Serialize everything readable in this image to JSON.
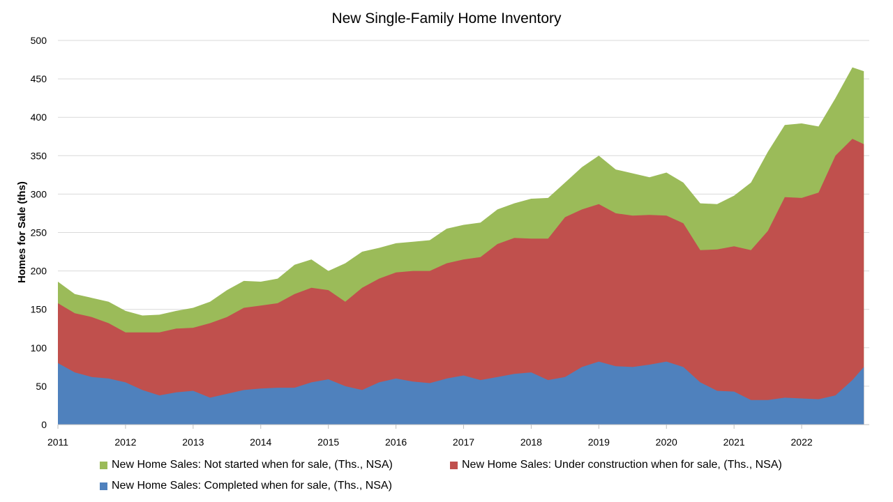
{
  "chart_data": {
    "type": "area",
    "stacked": true,
    "title": "New Single-Family Home Inventory",
    "xlabel": "",
    "ylabel": "Homes for Sale (ths)",
    "xlim": [
      2011,
      2023
    ],
    "ylim": [
      0,
      500
    ],
    "x_ticks": [
      "2011",
      "2012",
      "2013",
      "2014",
      "2015",
      "2016",
      "2017",
      "2018",
      "2019",
      "2020",
      "2021",
      "2022"
    ],
    "y_ticks": [
      "0",
      "50",
      "100",
      "150",
      "200",
      "250",
      "300",
      "350",
      "400",
      "450",
      "500"
    ],
    "grid": "horizontal",
    "legend_position": "bottom",
    "x": [
      2011.0,
      2011.25,
      2011.5,
      2011.75,
      2012.0,
      2012.25,
      2012.5,
      2012.75,
      2013.0,
      2013.25,
      2013.5,
      2013.75,
      2014.0,
      2014.25,
      2014.5,
      2014.75,
      2015.0,
      2015.25,
      2015.5,
      2015.75,
      2016.0,
      2016.25,
      2016.5,
      2016.75,
      2017.0,
      2017.25,
      2017.5,
      2017.75,
      2018.0,
      2018.25,
      2018.5,
      2018.75,
      2019.0,
      2019.25,
      2019.5,
      2019.75,
      2020.0,
      2020.25,
      2020.5,
      2020.75,
      2021.0,
      2021.25,
      2021.5,
      2021.75,
      2022.0,
      2022.25,
      2022.5,
      2022.75,
      2022.92
    ],
    "series": [
      {
        "name": "New Home Sales: Completed when for sale, (Ths., NSA)",
        "color": "#4F81BD",
        "values": [
          80,
          68,
          62,
          60,
          55,
          45,
          38,
          42,
          44,
          35,
          40,
          45,
          47,
          48,
          48,
          55,
          59,
          50,
          45,
          55,
          60,
          56,
          54,
          60,
          64,
          58,
          62,
          66,
          68,
          58,
          62,
          75,
          82,
          76,
          75,
          78,
          82,
          75,
          55,
          44,
          43,
          32,
          32,
          35,
          34,
          33,
          38,
          58,
          75
        ]
      },
      {
        "name": "New Home Sales: Under construction when for sale, (Ths., NSA)",
        "color": "#C0504D",
        "values": [
          158,
          145,
          140,
          132,
          120,
          120,
          120,
          125,
          126,
          132,
          140,
          152,
          155,
          158,
          170,
          178,
          175,
          160,
          178,
          190,
          198,
          200,
          200,
          210,
          215,
          218,
          235,
          243,
          242,
          242,
          270,
          280,
          287,
          275,
          272,
          273,
          272,
          262,
          227,
          228,
          232,
          227,
          252,
          296,
          295,
          302,
          350,
          372,
          365
        ]
      },
      {
        "name": "New Home Sales: Not started when for sale, (Ths., NSA)",
        "color": "#9BBB59",
        "values": [
          186,
          170,
          165,
          160,
          148,
          142,
          143,
          148,
          152,
          160,
          175,
          187,
          186,
          190,
          208,
          215,
          200,
          210,
          225,
          230,
          236,
          238,
          240,
          255,
          260,
          263,
          280,
          288,
          294,
          295,
          315,
          335,
          350,
          332,
          327,
          322,
          328,
          315,
          288,
          287,
          298,
          315,
          355,
          390,
          392,
          388,
          425,
          465,
          460
        ]
      }
    ]
  }
}
